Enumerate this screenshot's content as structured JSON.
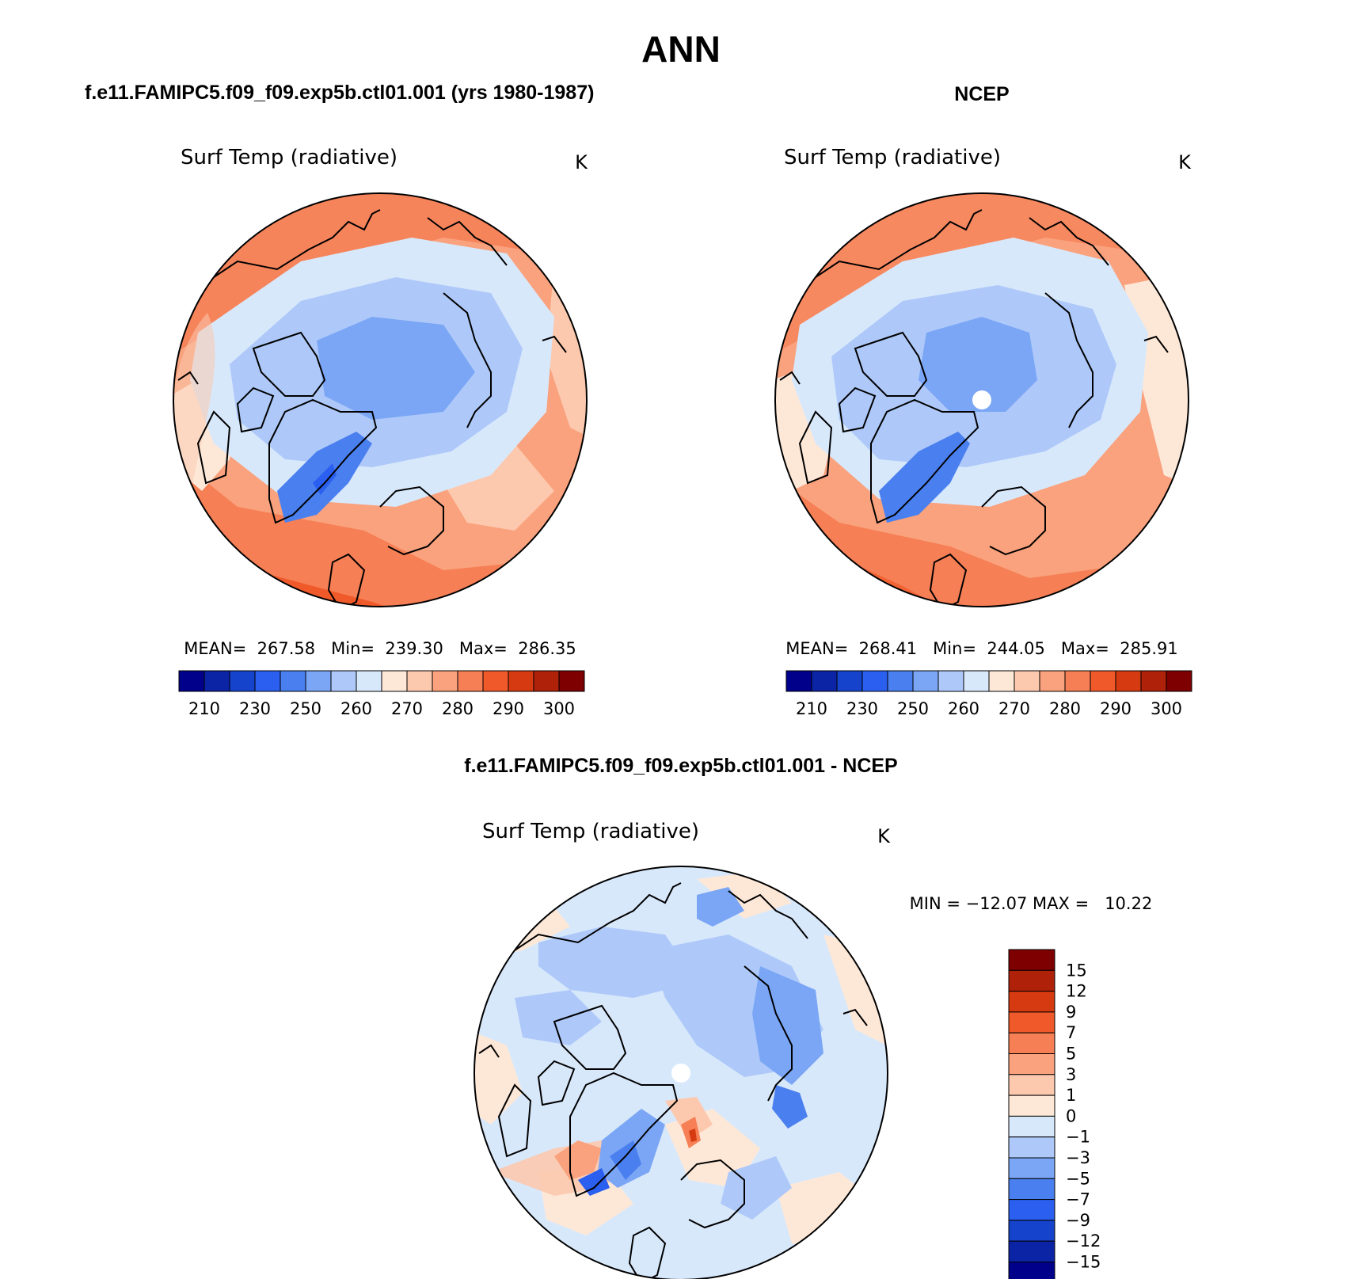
{
  "figure": {
    "season": "ANN",
    "left_case": "f.e11.FAMIPC5.f09_f09.exp5b.ctl01.001 (yrs 1980-1987)",
    "right_case": "NCEP",
    "diff_case": "f.e11.FAMIPC5.f09_f09.exp5b.ctl01.001 - NCEP"
  },
  "panels": {
    "model": {
      "variable": "Surf Temp (radiative)",
      "units": "K",
      "stats": "MEAN=  267.58   Min=  239.30   Max=  286.35",
      "mean": 267.58,
      "min": 239.3,
      "max": 286.35,
      "has_pole_hole": false
    },
    "obs": {
      "variable": "Surf Temp (radiative)",
      "units": "K",
      "stats": "MEAN=  268.41   Min=  244.05   Max=  285.91",
      "mean": 268.41,
      "min": 244.05,
      "max": 285.91,
      "has_pole_hole": true
    },
    "diff": {
      "variable": "Surf Temp (radiative)",
      "units": "K",
      "stats": "MIN = −12.07 MAX =   10.22",
      "min": -12.07,
      "max": 10.22,
      "has_pole_hole": true
    }
  },
  "abs_colorbar": {
    "colors": [
      "#00008b",
      "#0b24a5",
      "#1643cb",
      "#2a5ff0",
      "#4a7fef",
      "#7aa6f5",
      "#aec9f9",
      "#d8e8fb",
      "#fde8d8",
      "#fcc9ae",
      "#f9a27d",
      "#f67f55",
      "#f05a2a",
      "#d63a10",
      "#b0210a",
      "#7f0000"
    ],
    "tick_labels": [
      "210",
      "230",
      "250",
      "260",
      "270",
      "280",
      "290",
      "300"
    ],
    "tick_positions": [
      1,
      3,
      5,
      7,
      9,
      11,
      13,
      15
    ]
  },
  "diff_colorbar": {
    "colors": [
      "#00008b",
      "#0b24a5",
      "#1643cb",
      "#2a5ff0",
      "#4a7fef",
      "#7aa6f5",
      "#aec9f9",
      "#d8e8fb",
      "#fde8d8",
      "#fcc9ae",
      "#f9a27d",
      "#f67f55",
      "#f05a2a",
      "#d63a10",
      "#b0210a",
      "#7f0000"
    ],
    "tick_labels": [
      "−15",
      "−12",
      "−9",
      "−7",
      "−5",
      "−3",
      "−1",
      "0",
      "1",
      "3",
      "5",
      "7",
      "9",
      "12",
      "15"
    ]
  }
}
